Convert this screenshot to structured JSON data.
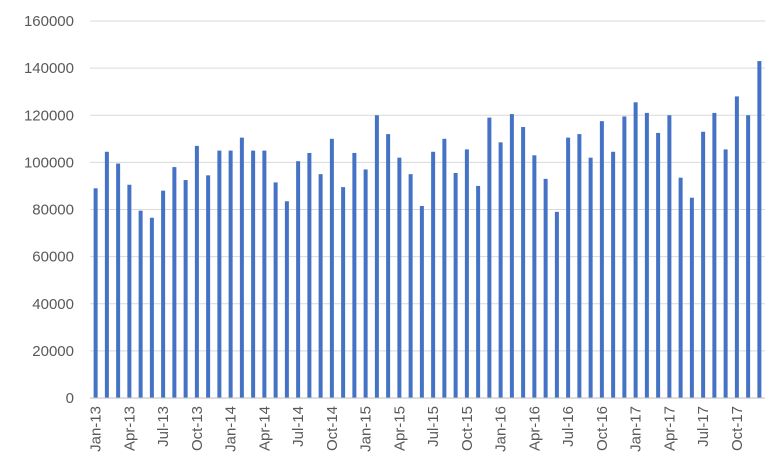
{
  "chart_data": {
    "type": "bar",
    "bar_color": "#4472c4",
    "grid": true,
    "legend": "none",
    "ylim": [
      0,
      160000
    ],
    "y_ticks": [
      0,
      20000,
      40000,
      60000,
      80000,
      100000,
      120000,
      140000,
      160000
    ],
    "y_tick_labels": [
      "0",
      "20000",
      "40000",
      "60000",
      "80000",
      "100000",
      "120000",
      "140000",
      "160000"
    ],
    "categories": [
      "Jan-13",
      "Feb-13",
      "Mar-13",
      "Apr-13",
      "May-13",
      "Jun-13",
      "Jul-13",
      "Aug-13",
      "Sep-13",
      "Oct-13",
      "Nov-13",
      "Dec-13",
      "Jan-14",
      "Feb-14",
      "Mar-14",
      "Apr-14",
      "May-14",
      "Jun-14",
      "Jul-14",
      "Aug-14",
      "Sep-14",
      "Oct-14",
      "Nov-14",
      "Dec-14",
      "Jan-15",
      "Feb-15",
      "Mar-15",
      "Apr-15",
      "May-15",
      "Jun-15",
      "Jul-15",
      "Aug-15",
      "Sep-15",
      "Oct-15",
      "Nov-15",
      "Dec-15",
      "Jan-16",
      "Feb-16",
      "Mar-16",
      "Apr-16",
      "May-16",
      "Jun-16",
      "Jul-16",
      "Aug-16",
      "Sep-16",
      "Oct-16",
      "Nov-16",
      "Dec-16",
      "Jan-17",
      "Feb-17",
      "Mar-17",
      "Apr-17",
      "May-17",
      "Jun-17",
      "Jul-17",
      "Aug-17",
      "Sep-17",
      "Oct-17",
      "Nov-17",
      "Dec-17"
    ],
    "x_tick_labels": [
      "Jan-13",
      "Apr-13",
      "Jul-13",
      "Oct-13",
      "Jan-14",
      "Apr-14",
      "Jul-14",
      "Oct-14",
      "Jan-15",
      "Apr-15",
      "Jul-15",
      "Oct-15",
      "Jan-16",
      "Apr-16",
      "Jul-16",
      "Oct-16",
      "Jan-17",
      "Apr-17",
      "Jul-17",
      "Oct-17"
    ],
    "values": [
      89000,
      104500,
      99500,
      90500,
      79500,
      76500,
      88000,
      98000,
      92500,
      107000,
      94500,
      105000,
      105000,
      110500,
      105000,
      105000,
      91500,
      83500,
      100500,
      104000,
      95000,
      110000,
      89500,
      104000,
      97000,
      120000,
      112000,
      102000,
      95000,
      81500,
      104500,
      110000,
      95500,
      105500,
      90000,
      119000,
      108500,
      120500,
      115000,
      103000,
      93000,
      79000,
      110500,
      112000,
      102000,
      117500,
      104500,
      119500,
      125500,
      121000,
      112500,
      120000,
      93500,
      85000,
      113000,
      121000,
      105500,
      128000,
      120000,
      143000
    ]
  }
}
